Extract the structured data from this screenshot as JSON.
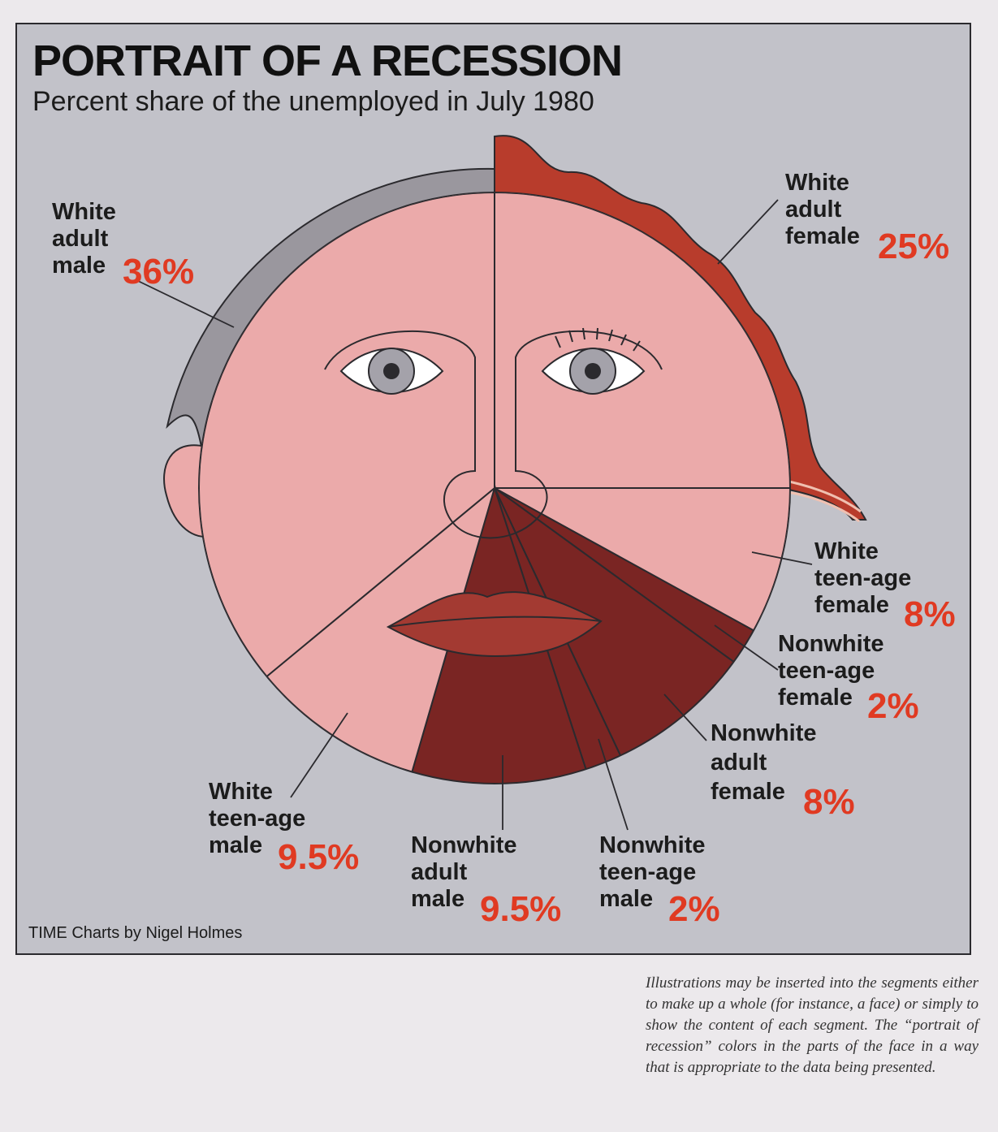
{
  "title": "PORTRAIT OF A RECESSION",
  "subtitle": "Percent share of the unemployed in July 1980",
  "credit": "TIME Charts by Nigel Holmes",
  "caption": "Illustrations may be inserted into the segments either to make up a whole (for instance, a face) or simply to show the content of each segment. The “portrait of recession” colors in the parts of the face in a way that is appropriate to the data being presented.",
  "colors": {
    "background": "#c2c2c9",
    "skin": "#ebaaaa",
    "white_female_hair": "#b83c2c",
    "white_male_hair": "#9a979e",
    "nonwhite_skin": "#7a2523",
    "lips": "#a33a32",
    "percent_text": "#e03a22"
  },
  "chart_data": {
    "type": "pie",
    "title": "PORTRAIT OF A RECESSION",
    "subtitle": "Percent share of the unemployed in July 1980",
    "unit": "%",
    "slices": [
      {
        "label_lines": [
          "White",
          "adult",
          "female"
        ],
        "value": 25,
        "value_label": "25%",
        "group": "white"
      },
      {
        "label_lines": [
          "White",
          "teen-age",
          "female"
        ],
        "value": 8,
        "value_label": "8%",
        "group": "white"
      },
      {
        "label_lines": [
          "Nonwhite",
          "teen-age",
          "female"
        ],
        "value": 2,
        "value_label": "2%",
        "group": "nonwhite"
      },
      {
        "label_lines": [
          "Nonwhite",
          "adult",
          "female"
        ],
        "value": 8,
        "value_label": "8%",
        "group": "nonwhite"
      },
      {
        "label_lines": [
          "Nonwhite",
          "teen-age",
          "male"
        ],
        "value": 2,
        "value_label": "2%",
        "group": "nonwhite"
      },
      {
        "label_lines": [
          "Nonwhite",
          "adult",
          "male"
        ],
        "value": 9.5,
        "value_label": "9.5%",
        "group": "nonwhite"
      },
      {
        "label_lines": [
          "White",
          "teen-age",
          "male"
        ],
        "value": 9.5,
        "value_label": "9.5%",
        "group": "white"
      },
      {
        "label_lines": [
          "White",
          "adult",
          "male"
        ],
        "value": 36,
        "value_label": "36%",
        "group": "white"
      }
    ]
  }
}
